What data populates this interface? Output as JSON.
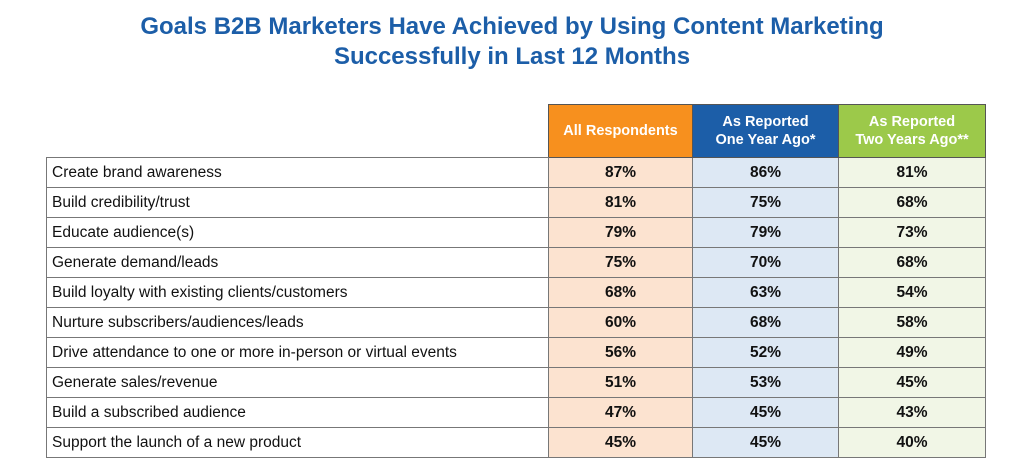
{
  "title": [
    "Goals B2B Marketers Have Achieved by Using Content Marketing",
    "Successfully in Last 12 Months"
  ],
  "columns": [
    {
      "label": [
        "All Respondents"
      ],
      "color": "#f7901e"
    },
    {
      "label": [
        "As Reported",
        "One Year Ago*"
      ],
      "color": "#1c5ea8"
    },
    {
      "label": [
        "As Reported",
        "Two Years Ago**"
      ],
      "color": "#9cc94a"
    }
  ],
  "rows": [
    {
      "label": "Create brand awareness",
      "values": [
        "87%",
        "86%",
        "81%"
      ]
    },
    {
      "label": "Build credibility/trust",
      "values": [
        "81%",
        "75%",
        "68%"
      ]
    },
    {
      "label": "Educate audience(s)",
      "values": [
        "79%",
        "79%",
        "73%"
      ]
    },
    {
      "label": "Generate demand/leads",
      "values": [
        "75%",
        "70%",
        "68%"
      ]
    },
    {
      "label": "Build loyalty with existing clients/customers",
      "values": [
        "68%",
        "63%",
        "54%"
      ]
    },
    {
      "label": "Nurture subscribers/audiences/leads",
      "values": [
        "60%",
        "68%",
        "58%"
      ]
    },
    {
      "label": "Drive attendance to one or more in-person or virtual events",
      "values": [
        "56%",
        "52%",
        "49%"
      ]
    },
    {
      "label": "Generate sales/revenue",
      "values": [
        "51%",
        "53%",
        "45%"
      ]
    },
    {
      "label": "Build a subscribed audience",
      "values": [
        "47%",
        "45%",
        "43%"
      ]
    },
    {
      "label": "Support the launch of a new product",
      "values": [
        "45%",
        "45%",
        "40%"
      ]
    }
  ]
}
